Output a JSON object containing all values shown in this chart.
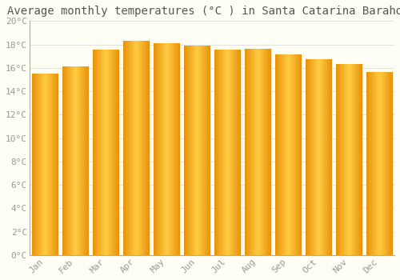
{
  "title": "Average monthly temperatures (°C ) in Santa Catarina Barahona",
  "months": [
    "Jan",
    "Feb",
    "Mar",
    "Apr",
    "May",
    "Jun",
    "Jul",
    "Aug",
    "Sep",
    "Oct",
    "Nov",
    "Dec"
  ],
  "values": [
    15.5,
    16.1,
    17.5,
    18.3,
    18.1,
    17.9,
    17.5,
    17.6,
    17.1,
    16.7,
    16.3,
    15.6
  ],
  "bar_color_center": "#FFCC44",
  "bar_color_edge": "#E8920A",
  "ylim": [
    0,
    20
  ],
  "yticks": [
    0,
    2,
    4,
    6,
    8,
    10,
    12,
    14,
    16,
    18,
    20
  ],
  "ytick_labels": [
    "0°C",
    "2°C",
    "4°C",
    "6°C",
    "8°C",
    "10°C",
    "12°C",
    "14°C",
    "16°C",
    "18°C",
    "20°C"
  ],
  "bg_color": "#FFFFF5",
  "grid_color": "#DDDDDD",
  "title_fontsize": 10,
  "tick_fontsize": 8,
  "tick_color": "#999999",
  "title_color": "#555555",
  "bar_width": 0.85,
  "spine_color": "#AAAAAA"
}
